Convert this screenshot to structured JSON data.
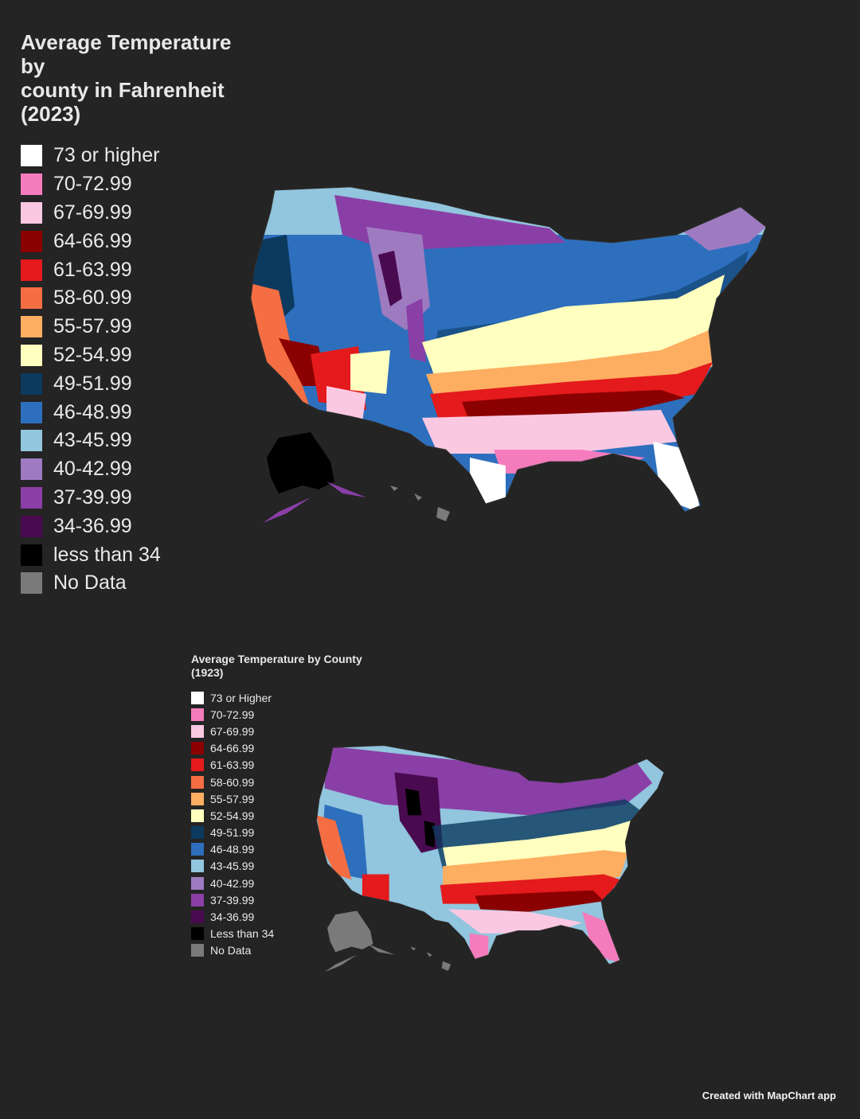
{
  "map_2023": {
    "title": "Average Temperature by\ncounty in Fahrenheit\n(2023)",
    "legend": [
      {
        "label": "73 or higher",
        "color": "#ffffff"
      },
      {
        "label": "70-72.99",
        "color": "#f47cbd"
      },
      {
        "label": "67-69.99",
        "color": "#fbc8e2"
      },
      {
        "label": "64-66.99",
        "color": "#8b0000"
      },
      {
        "label": "61-63.99",
        "color": "#e41a1c"
      },
      {
        "label": "58-60.99",
        "color": "#f46d43"
      },
      {
        "label": "55-57.99",
        "color": "#fdae61"
      },
      {
        "label": "52-54.99",
        "color": "#ffffbf"
      },
      {
        "label": "49-51.99",
        "color": "#0b3a5e"
      },
      {
        "label": "46-48.99",
        "color": "#2d6fbd"
      },
      {
        "label": "43-45.99",
        "color": "#92c5de"
      },
      {
        "label": "40-42.99",
        "color": "#9e7bc1"
      },
      {
        "label": "37-39.99",
        "color": "#8a3fa6"
      },
      {
        "label": "34-36.99",
        "color": "#4a0a4f"
      },
      {
        "label": "less than 34",
        "color": "#000000"
      },
      {
        "label": "No Data",
        "color": "#7a7a7a"
      }
    ]
  },
  "map_1923": {
    "title": "Average Temperature by County\n(1923)",
    "legend": [
      {
        "label": "73 or Higher",
        "color": "#ffffff"
      },
      {
        "label": "70-72.99",
        "color": "#f47cbd"
      },
      {
        "label": "67-69.99",
        "color": "#fbc8e2"
      },
      {
        "label": "64-66.99",
        "color": "#8b0000"
      },
      {
        "label": "61-63.99",
        "color": "#e41a1c"
      },
      {
        "label": "58-60.99",
        "color": "#f46d43"
      },
      {
        "label": "55-57.99",
        "color": "#fdae61"
      },
      {
        "label": "52-54.99",
        "color": "#ffffbf"
      },
      {
        "label": "49-51.99",
        "color": "#0b3a5e"
      },
      {
        "label": "46-48.99",
        "color": "#2d6fbd"
      },
      {
        "label": "43-45.99",
        "color": "#92c5de"
      },
      {
        "label": "40-42.99",
        "color": "#9e7bc1"
      },
      {
        "label": "37-39.99",
        "color": "#8a3fa6"
      },
      {
        "label": "34-36.99",
        "color": "#4a0a4f"
      },
      {
        "label": "Less than 34",
        "color": "#000000"
      },
      {
        "label": "No Data",
        "color": "#7a7a7a"
      }
    ]
  },
  "credit": "Created with MapChart app"
}
